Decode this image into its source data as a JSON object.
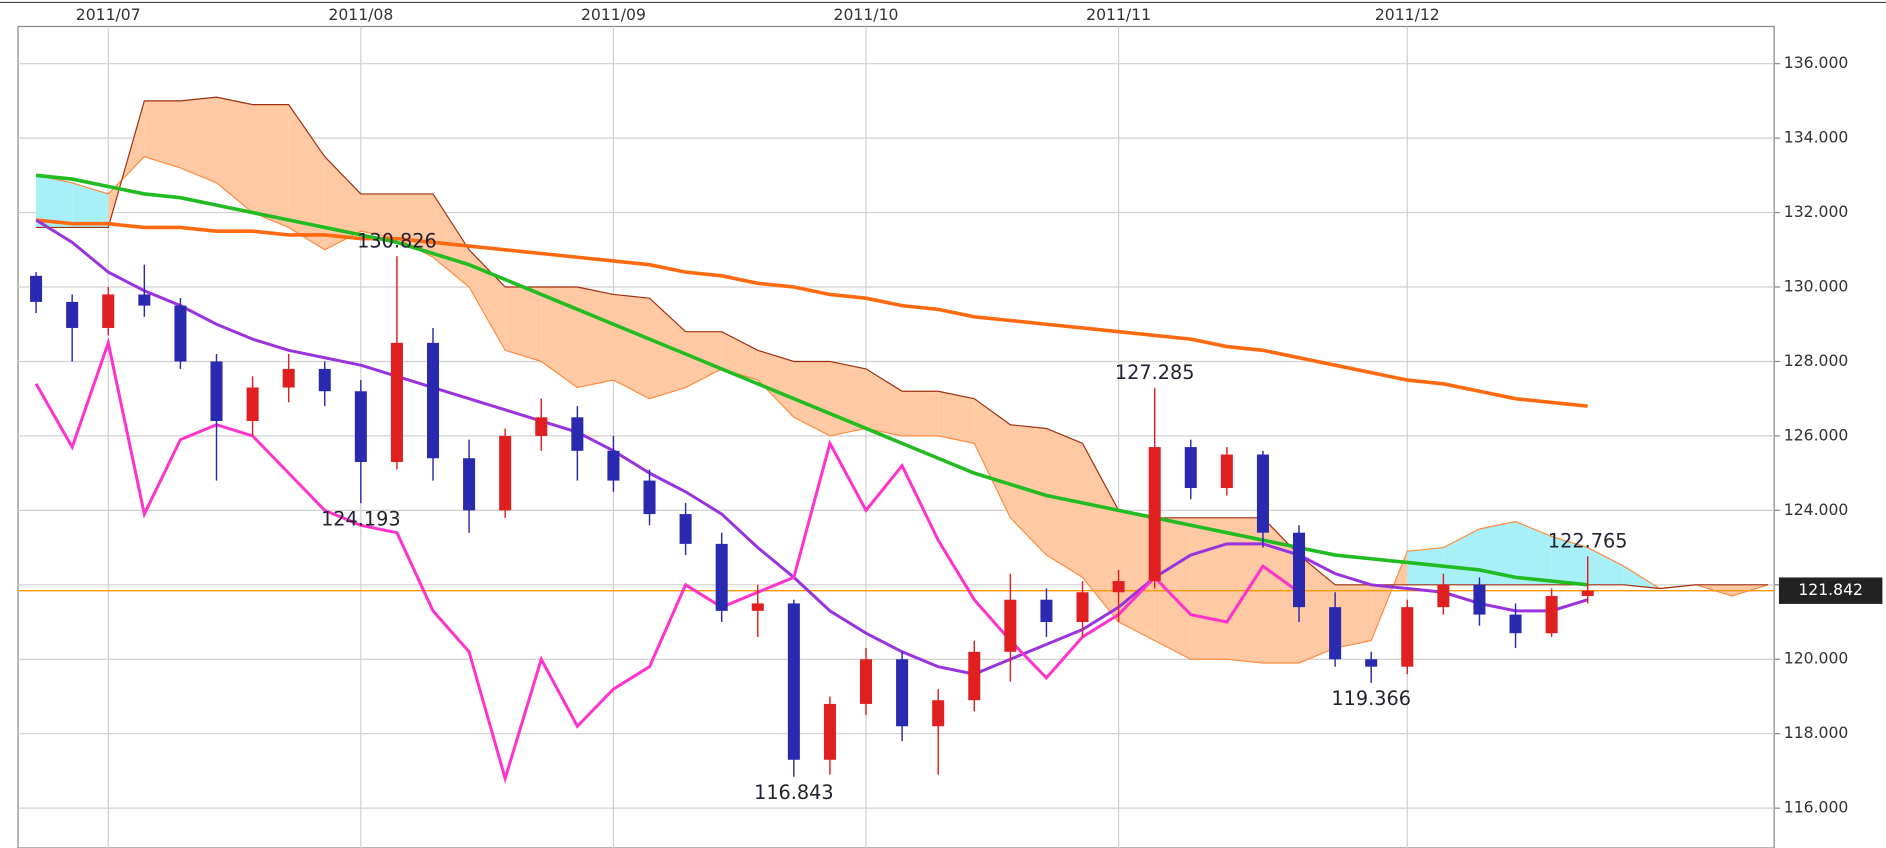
{
  "chart_data": {
    "type": "candlestick",
    "categories": [
      null,
      null,
      "2011/07",
      null,
      null,
      null,
      null,
      null,
      null,
      "2011/08",
      null,
      null,
      null,
      null,
      null,
      null,
      "2011/09",
      null,
      null,
      null,
      null,
      null,
      null,
      "2011/10",
      null,
      null,
      null,
      null,
      null,
      null,
      "2011/11",
      null,
      null,
      null,
      null,
      null,
      null,
      null,
      "2011/12",
      null,
      null,
      null,
      null,
      null,
      null,
      null,
      null,
      null,
      null
    ],
    "open": [
      130.3,
      129.6,
      128.9,
      129.8,
      129.5,
      128.0,
      126.4,
      127.3,
      127.8,
      127.2,
      125.3,
      128.5,
      125.4,
      124.0,
      126.0,
      126.5,
      125.6,
      124.8,
      123.9,
      123.1,
      121.3,
      121.5,
      117.3,
      118.8,
      120.0,
      118.2,
      118.9,
      120.2,
      121.6,
      121.0,
      121.8,
      122.1,
      125.7,
      124.6,
      125.5,
      123.4,
      121.4,
      120.0,
      119.8,
      121.4,
      122.0,
      121.2,
      120.7,
      121.7,
      null,
      null,
      null,
      null,
      null
    ],
    "high": [
      130.4,
      129.8,
      130.0,
      130.6,
      129.7,
      128.2,
      127.6,
      128.2,
      128.0,
      127.5,
      130.826,
      128.9,
      125.9,
      126.2,
      127.0,
      126.8,
      126.0,
      125.1,
      124.2,
      123.4,
      122.0,
      121.6,
      119.0,
      120.3,
      120.2,
      119.2,
      120.5,
      122.3,
      121.9,
      122.1,
      122.4,
      127.285,
      125.9,
      125.7,
      125.6,
      123.6,
      121.8,
      120.2,
      121.6,
      122.3,
      122.2,
      121.5,
      121.9,
      122.765,
      null,
      null,
      null,
      null,
      null
    ],
    "low": [
      129.3,
      128.0,
      128.7,
      129.2,
      127.8,
      124.8,
      126.0,
      126.9,
      126.8,
      124.193,
      125.1,
      124.8,
      123.4,
      123.8,
      125.6,
      124.8,
      124.5,
      123.6,
      122.8,
      121.0,
      120.6,
      116.843,
      116.9,
      118.5,
      117.8,
      116.9,
      118.6,
      119.4,
      120.6,
      120.6,
      121.0,
      121.9,
      124.3,
      124.4,
      123.0,
      121.0,
      119.8,
      119.366,
      119.6,
      121.2,
      120.9,
      120.3,
      120.6,
      121.5,
      null,
      null,
      null,
      null,
      null
    ],
    "close": [
      129.6,
      128.9,
      129.8,
      129.5,
      128.0,
      126.4,
      127.3,
      127.8,
      127.2,
      125.3,
      128.5,
      125.4,
      124.0,
      126.0,
      126.5,
      125.6,
      124.8,
      123.9,
      123.1,
      121.3,
      121.5,
      117.3,
      118.8,
      120.0,
      118.2,
      118.9,
      120.2,
      121.6,
      121.0,
      121.8,
      122.1,
      125.7,
      124.6,
      125.5,
      123.4,
      121.4,
      120.0,
      119.8,
      121.4,
      122.0,
      121.2,
      120.7,
      121.7,
      121.842,
      null,
      null,
      null,
      null,
      null
    ],
    "up_color": "#e02020",
    "down_color": "#2a2ab0",
    "series": [
      {
        "color": "#ff6a10",
        "values": [
          131.8,
          131.7,
          131.7,
          131.6,
          131.6,
          131.5,
          131.5,
          131.4,
          131.4,
          131.3,
          131.3,
          131.2,
          131.1,
          131.0,
          130.9,
          130.8,
          130.7,
          130.6,
          130.4,
          130.3,
          130.1,
          130.0,
          129.8,
          129.7,
          129.5,
          129.4,
          129.2,
          129.1,
          129.0,
          128.9,
          128.8,
          128.7,
          128.6,
          128.4,
          128.3,
          128.1,
          127.9,
          127.7,
          127.5,
          127.4,
          127.2,
          127.0,
          126.9,
          126.8,
          null,
          null,
          null,
          null,
          null
        ]
      },
      {
        "color": "#22bb22",
        "values": [
          133.0,
          132.9,
          132.7,
          132.5,
          132.4,
          132.2,
          132.0,
          131.8,
          131.6,
          131.4,
          131.2,
          130.9,
          130.6,
          130.2,
          129.8,
          129.4,
          129.0,
          128.6,
          128.2,
          127.8,
          127.4,
          127.0,
          126.6,
          126.2,
          125.8,
          125.4,
          125.0,
          124.7,
          124.4,
          124.2,
          124.0,
          123.8,
          123.6,
          123.4,
          123.2,
          123.0,
          122.8,
          122.7,
          122.6,
          122.5,
          122.4,
          122.2,
          122.1,
          122.0,
          null,
          null,
          null,
          null,
          null
        ]
      },
      {
        "color": "#9933dd",
        "values": [
          131.8,
          131.2,
          130.4,
          129.9,
          129.5,
          129.0,
          128.6,
          128.3,
          128.1,
          127.9,
          127.6,
          127.3,
          127.0,
          126.7,
          126.4,
          126.1,
          125.6,
          125.0,
          124.5,
          123.9,
          123.0,
          122.2,
          121.3,
          120.7,
          120.2,
          119.8,
          119.6,
          120.0,
          120.4,
          120.8,
          121.4,
          122.2,
          122.8,
          123.1,
          123.1,
          122.8,
          122.3,
          122.0,
          121.9,
          121.8,
          121.5,
          121.3,
          121.3,
          121.6,
          null,
          null,
          null,
          null,
          null
        ]
      },
      {
        "color": "#ff33cc",
        "values": [
          127.4,
          125.7,
          128.5,
          123.9,
          125.9,
          126.3,
          126.0,
          125.0,
          124.0,
          123.6,
          123.4,
          121.3,
          120.2,
          116.8,
          120.0,
          118.2,
          119.2,
          119.8,
          122.0,
          121.4,
          121.8,
          122.2,
          125.8,
          124.0,
          125.2,
          123.2,
          121.6,
          120.5,
          119.5,
          120.6,
          121.2,
          122.2,
          121.2,
          121.0,
          122.5,
          121.8,
          null,
          null,
          null,
          null,
          null,
          null,
          null,
          null,
          null,
          null,
          null,
          null,
          null
        ]
      }
    ],
    "cloud": {
      "span_a_color": "#ff8c40",
      "span_b_color": "#a03010",
      "up_fill": "#a8f0f8",
      "down_fill": "#ffc9a3",
      "span_a": [
        133.0,
        132.8,
        132.5,
        133.5,
        133.2,
        132.8,
        132.0,
        131.6,
        131.0,
        131.5,
        131.3,
        130.8,
        130.0,
        128.3,
        128.0,
        127.3,
        127.5,
        127.0,
        127.3,
        127.8,
        127.5,
        126.5,
        126.0,
        126.2,
        126.0,
        126.0,
        125.8,
        123.8,
        122.8,
        122.2,
        121.0,
        120.5,
        120.0,
        120.0,
        119.9,
        119.9,
        120.3,
        120.5,
        122.9,
        123.0,
        123.5,
        123.7,
        123.3,
        123.0,
        122.5,
        121.9,
        122.0,
        121.7,
        122.0
      ],
      "span_b": [
        131.6,
        131.6,
        131.6,
        135.0,
        135.0,
        135.1,
        134.9,
        134.9,
        133.5,
        132.5,
        132.5,
        132.5,
        131.0,
        130.0,
        130.0,
        130.0,
        129.8,
        129.7,
        128.8,
        128.8,
        128.3,
        128.0,
        128.0,
        127.8,
        127.2,
        127.2,
        127.0,
        126.3,
        126.2,
        125.8,
        124.0,
        123.8,
        123.8,
        123.8,
        123.8,
        122.8,
        122.0,
        122.0,
        122.0,
        122.0,
        122.0,
        122.0,
        122.0,
        122.0,
        122.0,
        121.9,
        122.0,
        122.0,
        122.0
      ]
    },
    "annotations": [
      130.826,
      124.193,
      116.843,
      127.285,
      119.366,
      122.765
    ],
    "last_price": 121.842,
    "last_price_color": "#ff9900",
    "ylim": [
      114.93,
      137.71
    ],
    "yticks": [
      {
        "value": 116,
        "label": "116.000"
      },
      {
        "value": 118,
        "label": "118.000"
      },
      {
        "value": 120,
        "label": "120.000"
      },
      {
        "value": 122,
        "label": "122.000"
      },
      {
        "value": 124,
        "label": "124.000"
      },
      {
        "value": 126,
        "label": "126.000"
      },
      {
        "value": 128,
        "label": "128.000"
      },
      {
        "value": 130,
        "label": "130.000"
      },
      {
        "value": 132,
        "label": "132.000"
      },
      {
        "value": 134,
        "label": "134.000"
      },
      {
        "value": 136,
        "label": "136.000"
      }
    ],
    "grid": true
  }
}
